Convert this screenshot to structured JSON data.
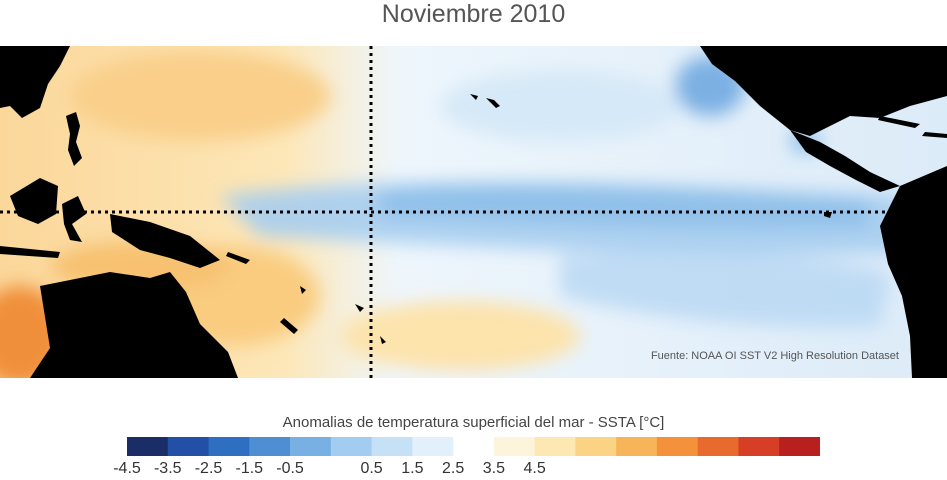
{
  "title": "Noviembre 2010",
  "source": "Fuente: NOAA OI SST V2 High Resolution Dataset",
  "legend": {
    "title": "Anomalias de temperatura superficial del mar - SSTA  [°C]",
    "colors": [
      "#1b2d66",
      "#2350a6",
      "#2f6fc2",
      "#4e8fd4",
      "#79b0e3",
      "#a3cdf0",
      "#c6e1f6",
      "#e2f0fb",
      "#ffffff",
      "#fdf4dc",
      "#fde7b2",
      "#fbd385",
      "#f8b458",
      "#f3923a",
      "#e86a2d",
      "#d63f25",
      "#b81f1f"
    ],
    "tick_labels": [
      "-4.5",
      "-3.5",
      "-2.5",
      "-1.5",
      "-0.5",
      "0.5",
      "1.5",
      "2.5",
      "3.5",
      "4.5"
    ]
  },
  "map": {
    "land_color": "#000000",
    "grid_style": "dotted"
  }
}
